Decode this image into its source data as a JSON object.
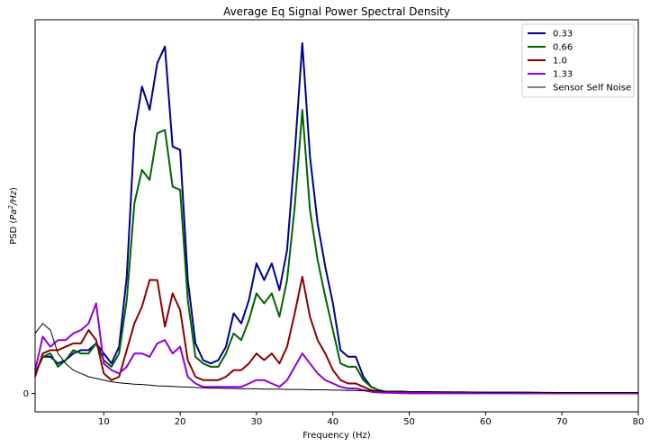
{
  "chart_data": {
    "type": "line",
    "title": "Average Eq Signal Power Spectral Density",
    "xlabel": "Frequency (Hz)",
    "ylabel": "PSD (Pa²/Hz)",
    "xlim": [
      1,
      80
    ],
    "ylim": [
      -0.055,
      1.12
    ],
    "x_ticks": [
      10,
      20,
      30,
      40,
      50,
      60,
      70,
      80
    ],
    "y_ticks": [
      0
    ],
    "grid": false,
    "legend_position": "top-right",
    "x": [
      1,
      2,
      3,
      4,
      5,
      6,
      7,
      8,
      9,
      10,
      11,
      12,
      13,
      14,
      15,
      16,
      17,
      18,
      19,
      20,
      21,
      22,
      23,
      24,
      25,
      26,
      27,
      28,
      29,
      30,
      31,
      32,
      33,
      34,
      35,
      36,
      37,
      38,
      39,
      40,
      41,
      42,
      43,
      44,
      45,
      46,
      47,
      48,
      49,
      50,
      55,
      60,
      65,
      70,
      75,
      80
    ],
    "series": [
      {
        "name": "0.33",
        "color": "#00008b",
        "width": 2,
        "values": [
          0.06,
          0.11,
          0.11,
          0.09,
          0.1,
          0.12,
          0.13,
          0.13,
          0.15,
          0.12,
          0.09,
          0.14,
          0.35,
          0.78,
          0.92,
          0.85,
          0.99,
          1.04,
          0.74,
          0.73,
          0.34,
          0.15,
          0.1,
          0.09,
          0.1,
          0.14,
          0.24,
          0.21,
          0.28,
          0.39,
          0.34,
          0.39,
          0.31,
          0.43,
          0.72,
          1.05,
          0.71,
          0.51,
          0.38,
          0.27,
          0.13,
          0.11,
          0.11,
          0.05,
          0.02,
          0.01,
          0.005,
          0.004,
          0.003,
          0.002,
          0.002,
          0.002,
          0.002,
          0.001,
          0.001,
          0.001
        ]
      },
      {
        "name": "0.66",
        "color": "#006400",
        "width": 2,
        "values": [
          0.06,
          0.11,
          0.12,
          0.08,
          0.1,
          0.13,
          0.12,
          0.12,
          0.15,
          0.1,
          0.08,
          0.12,
          0.28,
          0.57,
          0.67,
          0.64,
          0.78,
          0.79,
          0.62,
          0.61,
          0.28,
          0.11,
          0.09,
          0.08,
          0.08,
          0.12,
          0.18,
          0.16,
          0.22,
          0.3,
          0.27,
          0.3,
          0.23,
          0.34,
          0.56,
          0.85,
          0.55,
          0.4,
          0.29,
          0.19,
          0.09,
          0.08,
          0.08,
          0.04,
          0.02,
          0.01,
          0.004,
          0.003,
          0.002,
          0.002,
          0.002,
          0.002,
          0.001,
          0.001,
          0.001,
          0.001
        ]
      },
      {
        "name": "1.0",
        "color": "#8b0000",
        "width": 2,
        "values": [
          0.05,
          0.12,
          0.13,
          0.13,
          0.14,
          0.15,
          0.15,
          0.19,
          0.16,
          0.06,
          0.04,
          0.05,
          0.13,
          0.21,
          0.26,
          0.34,
          0.34,
          0.2,
          0.3,
          0.25,
          0.1,
          0.05,
          0.04,
          0.04,
          0.04,
          0.05,
          0.07,
          0.07,
          0.09,
          0.12,
          0.1,
          0.12,
          0.09,
          0.14,
          0.24,
          0.35,
          0.23,
          0.16,
          0.12,
          0.07,
          0.04,
          0.03,
          0.03,
          0.02,
          0.01,
          0.005,
          0.003,
          0.002,
          0.002,
          0.001,
          0.001,
          0.001,
          0.001,
          0.001,
          0.001,
          0.001
        ]
      },
      {
        "name": "1.33",
        "color": "#9400d3",
        "width": 2,
        "values": [
          0.07,
          0.17,
          0.14,
          0.16,
          0.16,
          0.18,
          0.19,
          0.21,
          0.27,
          0.09,
          0.07,
          0.06,
          0.08,
          0.12,
          0.12,
          0.11,
          0.15,
          0.16,
          0.12,
          0.14,
          0.05,
          0.03,
          0.02,
          0.02,
          0.02,
          0.02,
          0.02,
          0.02,
          0.03,
          0.04,
          0.04,
          0.03,
          0.02,
          0.04,
          0.08,
          0.12,
          0.09,
          0.06,
          0.04,
          0.03,
          0.02,
          0.015,
          0.015,
          0.01,
          0.005,
          0.003,
          0.002,
          0.002,
          0.001,
          0.001,
          0.001,
          0.001,
          0.001,
          0.001,
          0.001,
          0.001
        ]
      },
      {
        "name": "Sensor Self Noise",
        "color": "#000000",
        "width": 1,
        "values": [
          0.18,
          0.21,
          0.19,
          0.12,
          0.09,
          0.07,
          0.06,
          0.05,
          0.045,
          0.04,
          0.035,
          0.032,
          0.03,
          0.028,
          0.027,
          0.025,
          0.023,
          0.022,
          0.021,
          0.02,
          0.019,
          0.018,
          0.017,
          0.016,
          0.016,
          0.015,
          0.015,
          0.014,
          0.014,
          0.014,
          0.013,
          0.013,
          0.013,
          0.012,
          0.012,
          0.012,
          0.011,
          0.011,
          0.011,
          0.01,
          0.01,
          0.009,
          0.009,
          0.008,
          0.008,
          0.008,
          0.007,
          0.007,
          0.007,
          0.006,
          0.005,
          0.004,
          0.004,
          0.003,
          0.003,
          0.003
        ]
      }
    ]
  }
}
